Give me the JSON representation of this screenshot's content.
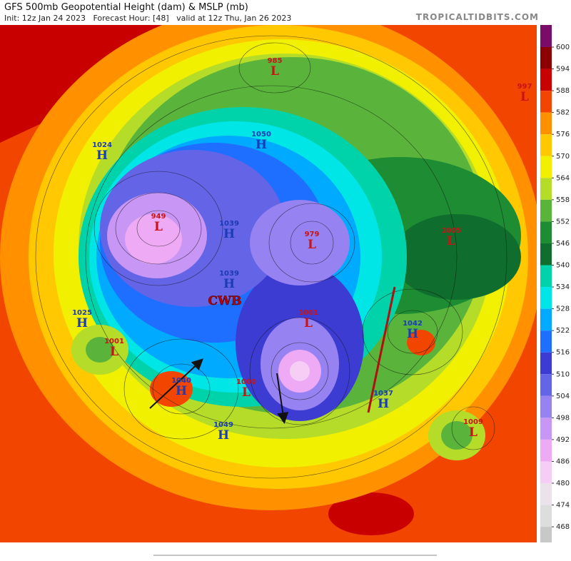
{
  "header": {
    "title": "GFS 500mb Geopotential Height (dam) & MSLP (mb)",
    "subtitle": "Init: 12z Jan 24 2023   Forecast Hour: [48]   valid at 12z Thu, Jan 26 2023",
    "source": "TROPICALTIDBITS.COM"
  },
  "colorbar": {
    "levels": [
      600,
      594,
      588,
      582,
      576,
      570,
      564,
      558,
      552,
      546,
      540,
      534,
      528,
      522,
      516,
      510,
      504,
      498,
      492,
      486,
      480,
      474,
      468
    ],
    "colors": [
      "#7a0b68",
      "#8b0000",
      "#c80000",
      "#f24600",
      "#ff9000",
      "#ffc800",
      "#f0f000",
      "#b4dc28",
      "#5ab43c",
      "#1e8c32",
      "#0f6e2d",
      "#00d2aa",
      "#00e6e6",
      "#00aaff",
      "#1e6eff",
      "#3c3cd2",
      "#6464e6",
      "#9682f0",
      "#c896f5",
      "#eeaaf5",
      "#f5cdf5",
      "#ece2ec",
      "#dddddd",
      "#c8c8c8"
    ]
  },
  "annotation": "CWB",
  "centers": [
    {
      "type": "H",
      "pressure": "1024"
    },
    {
      "type": "L",
      "pressure": "949"
    },
    {
      "type": "H",
      "pressure": "1039"
    },
    {
      "type": "H",
      "pressure": "1039"
    },
    {
      "type": "L",
      "pressure": "979"
    },
    {
      "type": "H",
      "pressure": "1050"
    },
    {
      "type": "L",
      "pressure": "985"
    },
    {
      "type": "L",
      "pressure": "997"
    },
    {
      "type": "H",
      "pressure": "1025"
    },
    {
      "type": "L",
      "pressure": "1005"
    },
    {
      "type": "L",
      "pressure": "1001"
    },
    {
      "type": "H",
      "pressure": "1040"
    },
    {
      "type": "L",
      "pressure": "1000"
    },
    {
      "type": "L",
      "pressure": "1001"
    },
    {
      "type": "H",
      "pressure": "1042"
    },
    {
      "type": "H",
      "pressure": "1037"
    },
    {
      "type": "H",
      "pressure": "1049"
    },
    {
      "type": "L",
      "pressure": "1009"
    }
  ]
}
